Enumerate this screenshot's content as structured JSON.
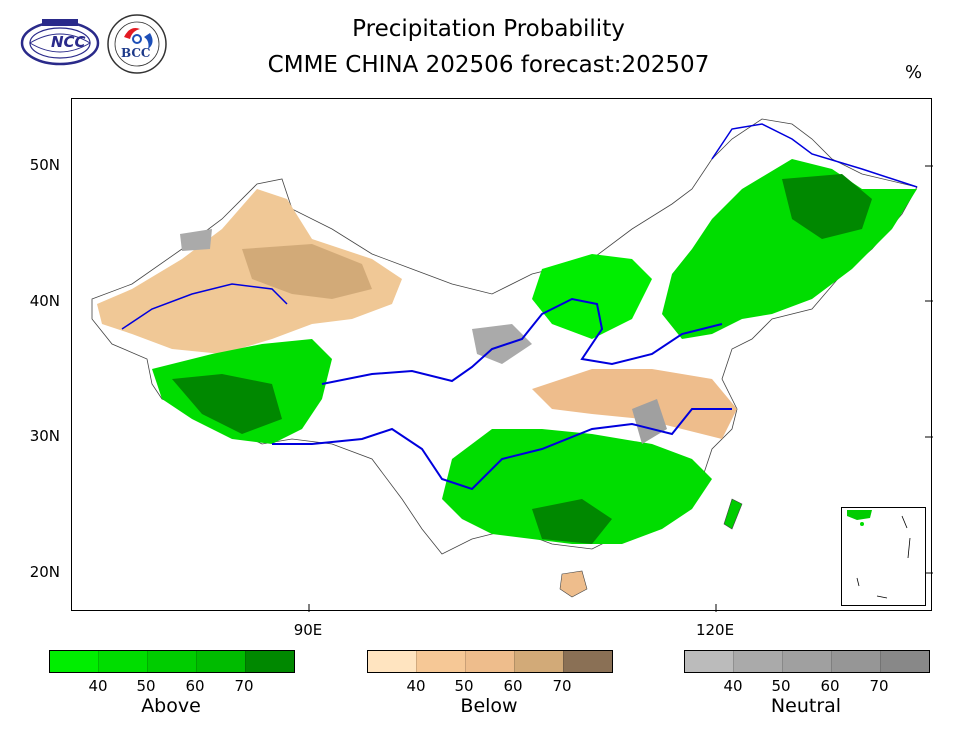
{
  "header": {
    "title": "Precipitation Probability",
    "subtitle": "CMME CHINA 202506 forecast:202507",
    "unit": "%"
  },
  "logos": {
    "left": {
      "icon": "ncc-logo-icon",
      "text": "NCC"
    },
    "right": {
      "icon": "bcc-logo-icon",
      "text": "BCC"
    }
  },
  "map": {
    "y_labels": [
      "50N",
      "40N",
      "30N",
      "20N"
    ],
    "x_labels": [
      "90E",
      "120E"
    ]
  },
  "legend": {
    "above": {
      "title": "Above",
      "ticks": [
        "40",
        "50",
        "60",
        "70"
      ],
      "colors": [
        "#00ee00",
        "#00dd00",
        "#00cc00",
        "#00bb00",
        "#008800"
      ]
    },
    "below": {
      "title": "Below",
      "ticks": [
        "40",
        "50",
        "60",
        "70"
      ],
      "colors": [
        "#ffe4c0",
        "#f6c896",
        "#eebd8c",
        "#d2aa78",
        "#8a7055"
      ]
    },
    "neutral": {
      "title": "Neutral",
      "ticks": [
        "40",
        "50",
        "60",
        "70"
      ],
      "colors": [
        "#bbbbbb",
        "#aaaaaa",
        "#a0a0a0",
        "#969696",
        "#888888"
      ]
    }
  }
}
